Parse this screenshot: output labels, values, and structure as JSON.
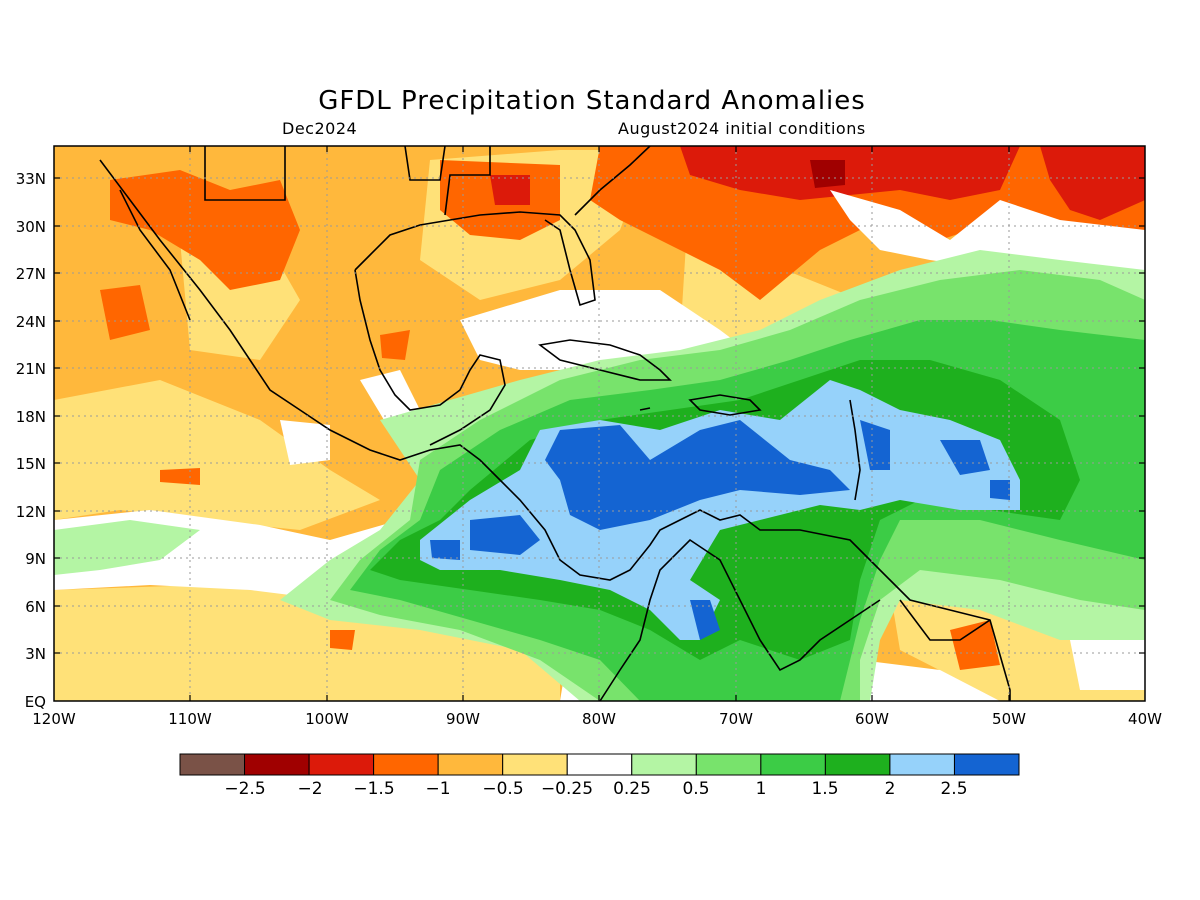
{
  "title": "GFDL Precipitation Standard Anomalies",
  "valid_month": "Dec2024",
  "initial_conditions": "August2024 initial conditions",
  "map": {
    "lon_range": [
      -120,
      -40
    ],
    "lat_range": [
      0,
      35
    ],
    "gridlines": true,
    "lat_labels": [
      "33N",
      "30N",
      "27N",
      "24N",
      "21N",
      "18N",
      "15N",
      "12N",
      "9N",
      "6N",
      "3N",
      "EQ"
    ],
    "lon_labels": [
      "120W",
      "110W",
      "100W",
      "90W",
      "80W",
      "70W",
      "60W",
      "50W",
      "40W"
    ]
  },
  "colorbar": {
    "colors": [
      "#7a5247",
      "#a00000",
      "#dc1a0a",
      "#ff6600",
      "#ffb83c",
      "#ffe178",
      "#ffffff",
      "#b4f5a4",
      "#78e36c",
      "#3ccc46",
      "#1eb01e",
      "#96d2fa",
      "#1464d2"
    ],
    "labels": [
      "−2.5",
      "−2",
      "−1.5",
      "−1",
      "−0.5",
      "−0.25",
      "0.25",
      "0.5",
      "1",
      "1.5",
      "2",
      "2.5"
    ]
  }
}
